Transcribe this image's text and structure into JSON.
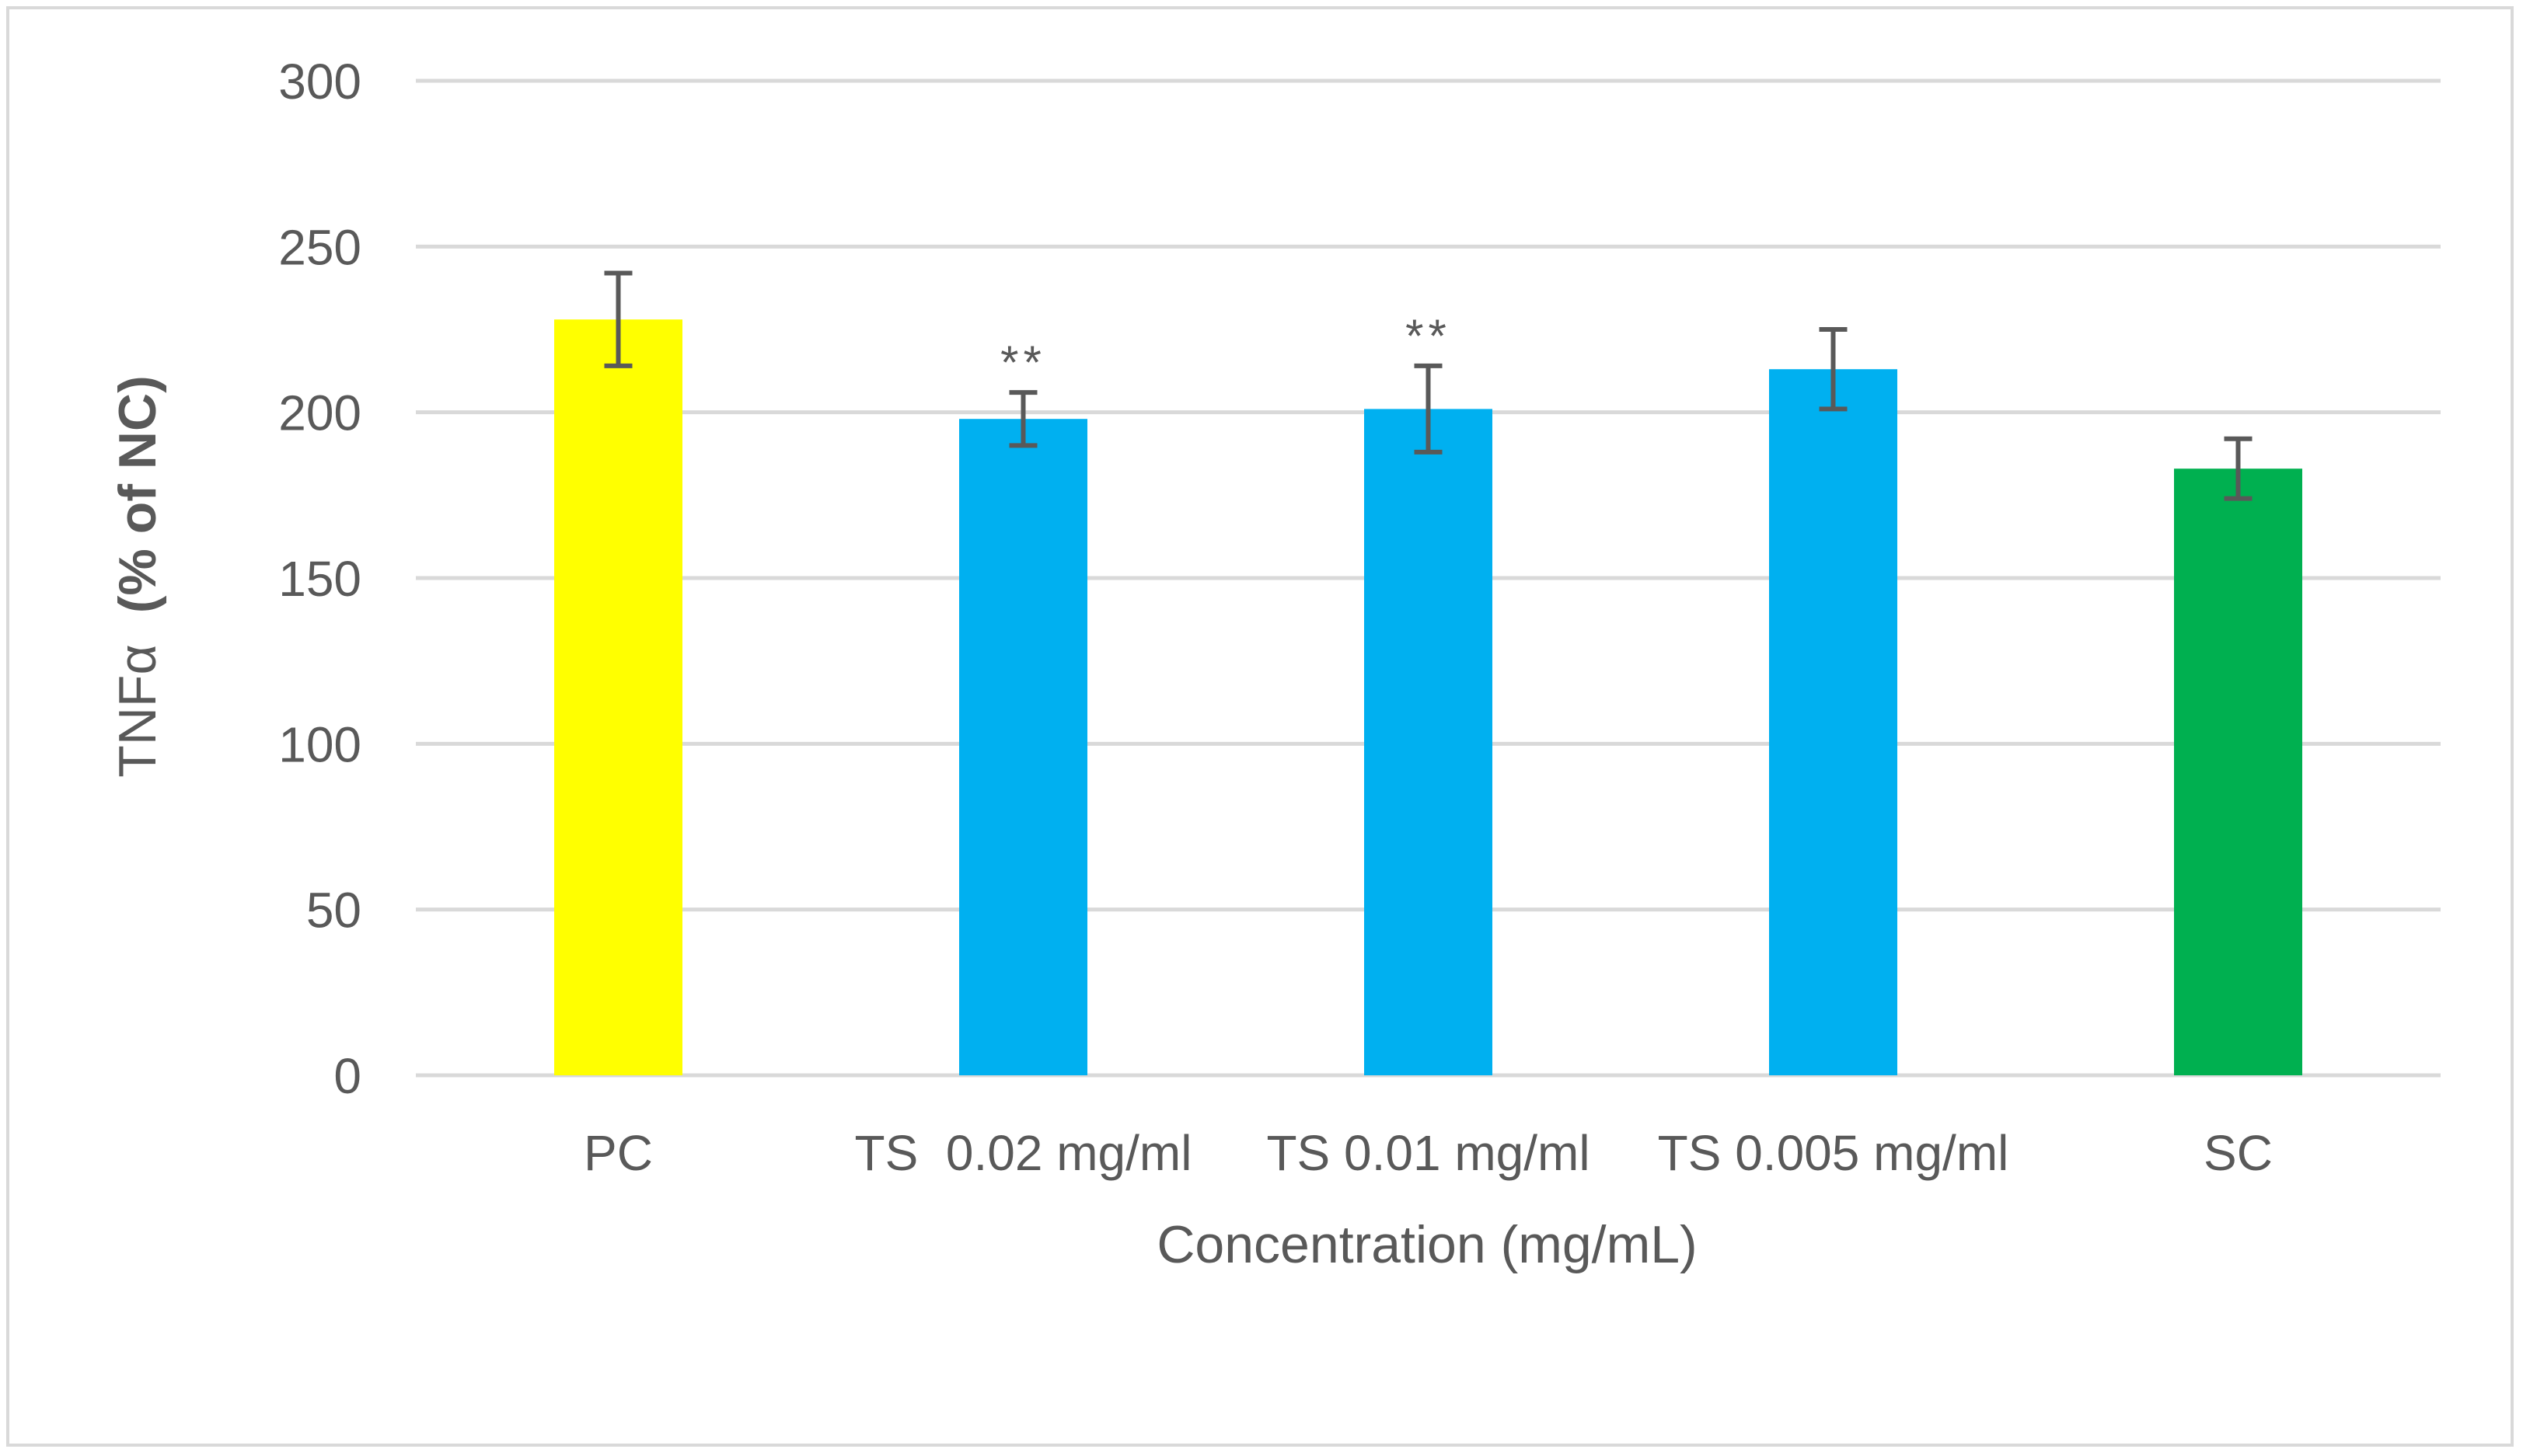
{
  "chart_data": {
    "type": "bar",
    "title": "",
    "xlabel": "Concentration (mg/mL)",
    "ylabel_main": "TNFα",
    "ylabel_bold": "(% of NC)",
    "ylim": [
      0,
      300
    ],
    "yticks": [
      0,
      50,
      100,
      150,
      200,
      250,
      300
    ],
    "grid": true,
    "categories": [
      "PC",
      "TS  0.02 mg/ml",
      "TS 0.01 mg/ml",
      "TS 0.005 mg/ml",
      "SC"
    ],
    "values": [
      228,
      198,
      201,
      213,
      183
    ],
    "errors": [
      14,
      8,
      13,
      12,
      9
    ],
    "significance": [
      "",
      "**",
      "**",
      "",
      ""
    ],
    "colors": [
      "#ffff00",
      "#00b0f0",
      "#00b0f0",
      "#00b0f0",
      "#00b050"
    ],
    "gridline_color": "#d9d9d9",
    "errorbar_color": "#595959"
  }
}
